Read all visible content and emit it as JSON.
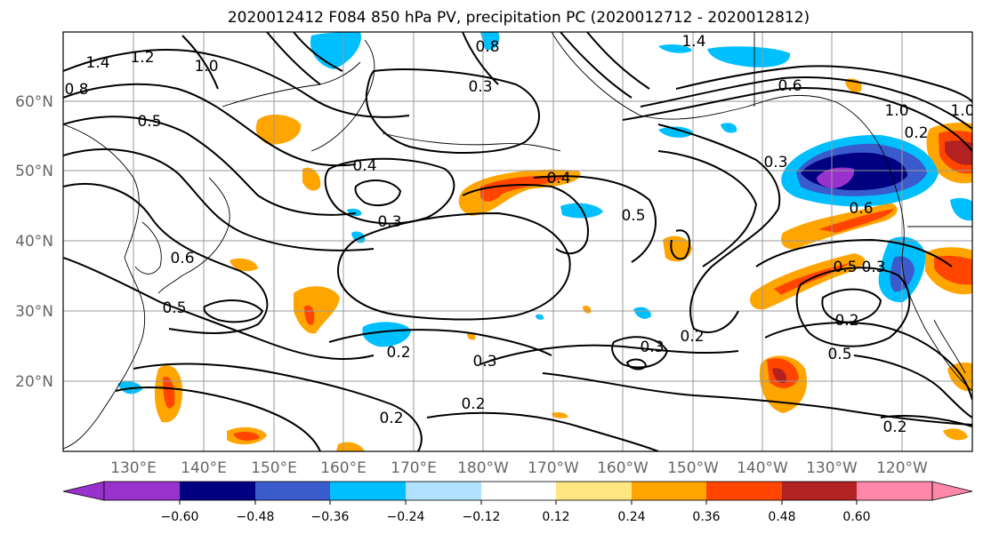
{
  "title": "2020012412 F084 850 hPa PV, precipitation PC (2020012712 - 2020012812)",
  "map": {
    "lat_labels": [
      "60°N",
      "50°N",
      "40°N",
      "30°N",
      "20°N"
    ],
    "lon_labels": [
      "130°E",
      "140°E",
      "150°E",
      "160°E",
      "170°E",
      "180°W",
      "170°W",
      "160°W",
      "150°W",
      "140°W",
      "130°W",
      "120°W"
    ],
    "contour_labels": [
      "1.4",
      "1.2",
      "1.0",
      "0.8",
      "0.5",
      "0.4",
      "0.3",
      "0.2",
      "0.6",
      "0.5",
      "0.4",
      "0.3",
      "0.2",
      "0.3",
      "0.2",
      "0.5",
      "0.6",
      "0.5",
      "0.3",
      "0.2",
      "1.4",
      "1.0",
      "0.6",
      "0.3",
      "1.0",
      "0.2",
      "0.2",
      "0.5",
      "0.3",
      "0.2",
      "0.8"
    ],
    "gridline_color": "#999999"
  },
  "colorbar": {
    "ticks": [
      "−0.60",
      "−0.48",
      "−0.36",
      "−0.24",
      "−0.12",
      "0.12",
      "0.24",
      "0.36",
      "0.48",
      "0.60"
    ],
    "colors": [
      "#9932cc",
      "#000080",
      "#3a5bcc",
      "#00bfff",
      "#b0e2ff",
      "#ffffff",
      "#ffe680",
      "#ffa500",
      "#ff4500",
      "#b22222",
      "#ff88aa"
    ]
  }
}
